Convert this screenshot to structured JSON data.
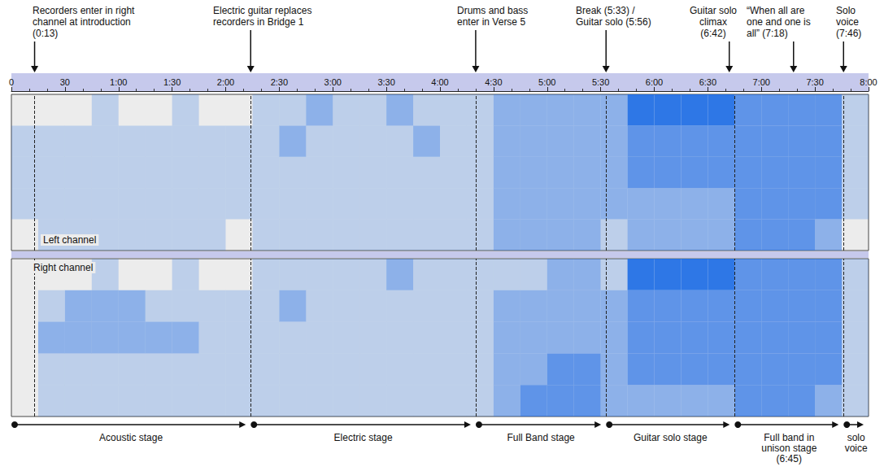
{
  "chart_data": {
    "type": "spectrogram",
    "color": "#1a6ae6",
    "xlim": [
      0,
      480
    ],
    "xticks": [
      0,
      30,
      {
        "value": 60,
        "label": "1:00"
      },
      {
        "value": 90,
        "label": "1:30"
      },
      {
        "value": 120,
        "label": "2:00"
      },
      {
        "value": 150,
        "label": "2:30"
      },
      {
        "value": 180,
        "label": "3:00"
      },
      {
        "value": 210,
        "label": "3:30"
      },
      {
        "value": 240,
        "label": "4:00"
      },
      {
        "value": 270,
        "label": "4:30"
      },
      {
        "value": 300,
        "label": "5:00"
      },
      {
        "value": 330,
        "label": "5:30"
      },
      {
        "value": 360,
        "label": "6:00"
      },
      {
        "value": 390,
        "label": "6:30"
      },
      {
        "value": 420,
        "label": "7:00"
      },
      {
        "value": 450,
        "label": "7:30"
      },
      {
        "value": 480,
        "label": "8:00"
      }
    ],
    "tick_labels": "x",
    "bins": [
      0,
      15,
      30,
      45,
      60,
      75,
      90,
      105,
      120,
      135,
      150,
      165,
      180,
      195,
      210,
      225,
      240,
      255,
      270,
      285,
      300,
      315,
      330,
      345,
      360,
      375,
      390,
      405,
      420,
      435,
      450,
      465,
      480
    ],
    "panels": [
      {
        "name": "Left channel",
        "values": [
          [
            0,
            1,
            1,
            1,
            1,
            1,
            1,
            1,
            0,
            1,
            1,
            1,
            1,
            1,
            1,
            1,
            1,
            1,
            2,
            2,
            2,
            2,
            1,
            2,
            2,
            2,
            2,
            3,
            3,
            3,
            2,
            0
          ],
          [
            1,
            1,
            1,
            1,
            1,
            1,
            1,
            1,
            1,
            1,
            1,
            1,
            1,
            1,
            1,
            1,
            1,
            1,
            2,
            2,
            2,
            2,
            2,
            2,
            2,
            2,
            2,
            3,
            3,
            3,
            3,
            1
          ],
          [
            1,
            1,
            1,
            1,
            1,
            1,
            1,
            1,
            1,
            1,
            1,
            1,
            1,
            1,
            1,
            1,
            1,
            1,
            2,
            2,
            2,
            2,
            2,
            3,
            3,
            3,
            3,
            3,
            3,
            3,
            3,
            1
          ],
          [
            1,
            1,
            1,
            1,
            1,
            1,
            1,
            1,
            1,
            1,
            2,
            1,
            1,
            1,
            1,
            2,
            1,
            1,
            2,
            2,
            2,
            2,
            2,
            3,
            3,
            3,
            3,
            3,
            3,
            3,
            3,
            1
          ],
          [
            0,
            0,
            0,
            1,
            0,
            0,
            1,
            0,
            0,
            1,
            1,
            2,
            1,
            1,
            2,
            1,
            1,
            1,
            2,
            2,
            2,
            2,
            2,
            4,
            4,
            4,
            4,
            3,
            3,
            3,
            3,
            1
          ]
        ]
      },
      {
        "name": "Right channel",
        "values": [
          [
            0,
            1,
            1,
            1,
            1,
            1,
            1,
            1,
            1,
            1,
            1,
            1,
            1,
            1,
            1,
            1,
            1,
            1,
            2,
            3,
            3,
            3,
            2,
            2,
            2,
            2,
            2,
            3,
            3,
            3,
            2,
            1
          ],
          [
            0,
            1,
            1,
            1,
            1,
            1,
            1,
            1,
            1,
            1,
            1,
            1,
            1,
            1,
            1,
            1,
            1,
            1,
            2,
            2,
            3,
            3,
            2,
            3,
            3,
            3,
            3,
            3,
            3,
            3,
            3,
            1
          ],
          [
            0,
            2,
            2,
            2,
            2,
            2,
            2,
            1,
            1,
            1,
            1,
            1,
            1,
            1,
            1,
            1,
            1,
            1,
            2,
            2,
            2,
            2,
            2,
            3,
            3,
            3,
            3,
            3,
            3,
            3,
            3,
            1
          ],
          [
            0,
            1,
            2,
            2,
            2,
            1,
            1,
            1,
            1,
            1,
            2,
            1,
            1,
            1,
            1,
            1,
            1,
            1,
            2,
            2,
            2,
            2,
            2,
            3,
            3,
            3,
            3,
            3,
            3,
            3,
            3,
            1
          ],
          [
            0,
            0,
            0,
            1,
            0,
            0,
            1,
            0,
            0,
            1,
            1,
            1,
            1,
            1,
            2,
            1,
            1,
            1,
            1,
            1,
            2,
            2,
            1,
            4,
            4,
            4,
            4,
            3,
            3,
            3,
            3,
            1
          ]
        ]
      }
    ],
    "dividers": [
      13,
      134,
      260,
      333,
      405,
      466
    ],
    "annotations": [
      {
        "text": "Recorders enter in right channel at introduction (0:13)",
        "x": 13
      },
      {
        "text": "Electric guitar replaces recorders in Bridge 1",
        "x": 134
      },
      {
        "text": "Drums and bass enter in Verse 5",
        "x": 260
      },
      {
        "text": "Break (5:33) / Guitar solo (5:56)",
        "x": 333
      },
      {
        "text": "Guitar solo climax (6:42)",
        "x": 402
      },
      {
        "text": "“When all are one and one is all” (7:18)",
        "x": 438
      },
      {
        "text": "Solo voice (7:46)",
        "x": 466
      }
    ],
    "stages": [
      {
        "label": "Acoustic stage",
        "start": 0,
        "end": 134
      },
      {
        "label": "Electric stage",
        "start": 134,
        "end": 260
      },
      {
        "label": "Full Band stage",
        "start": 260,
        "end": 333
      },
      {
        "label": "Guitar solo stage",
        "start": 333,
        "end": 405
      },
      {
        "label": "Full band in unison stage (6:45)",
        "start": 405,
        "end": 466
      },
      {
        "label": "solo voice",
        "start": 466,
        "end": 480
      }
    ]
  }
}
